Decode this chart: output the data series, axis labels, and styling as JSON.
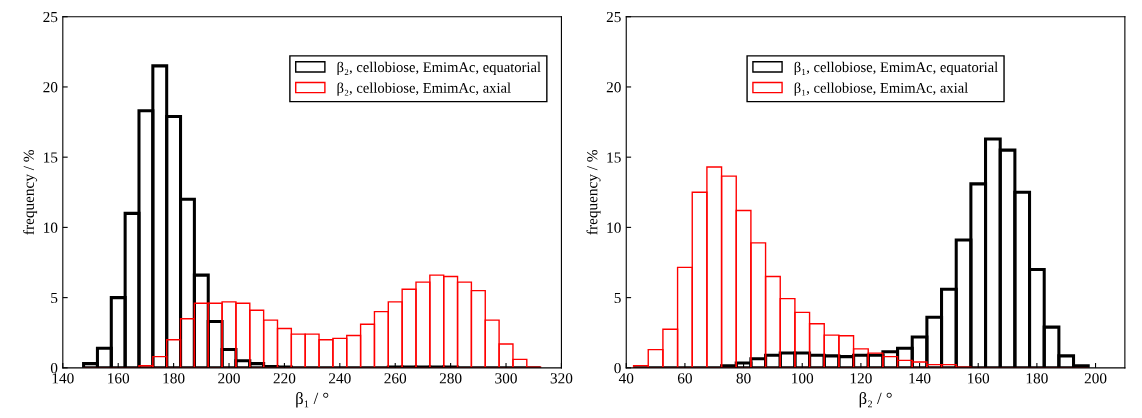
{
  "chart_data": [
    {
      "type": "histogram",
      "xlabel": "β₁ / °",
      "ylabel": "frequency / %",
      "legend": "top right",
      "bins": [
        147.5,
        152.5,
        157.5,
        162.5,
        167.5,
        172.5,
        177.5,
        182.5,
        187.5,
        192.5,
        197.5,
        202.5,
        207.5,
        212.5,
        217.5,
        222.5,
        227.5,
        232.5,
        237.5,
        242.5,
        247.5,
        252.5,
        257.5,
        262.5,
        267.5,
        272.5,
        277.5,
        282.5,
        287.5,
        292.5,
        297.5,
        302.5,
        307.5,
        312.5
      ],
      "series": [
        {
          "name": "β₂, cellobiose, EmimAc, equatorial",
          "color": "#000000",
          "values": [
            0.3,
            1.4,
            5.0,
            11.0,
            18.3,
            21.5,
            17.9,
            12.0,
            6.6,
            3.3,
            1.3,
            0.5,
            0.3,
            0.1,
            0.05,
            0,
            0,
            0,
            0,
            0,
            0,
            0,
            0.05,
            0.05,
            0.05,
            0.05,
            0.05,
            0,
            0,
            0,
            0,
            0,
            0
          ]
        },
        {
          "name": "β₂, cellobiose, EmimAc, axial",
          "color": "#ff0000",
          "values": [
            0,
            0,
            0,
            0,
            0.15,
            0.8,
            2.0,
            3.5,
            4.6,
            4.6,
            4.7,
            4.6,
            4.1,
            3.4,
            2.8,
            2.4,
            2.4,
            2.0,
            2.1,
            2.3,
            3.1,
            4.0,
            4.7,
            5.6,
            6.1,
            6.6,
            6.5,
            6.1,
            5.5,
            3.4,
            1.7,
            0.6,
            0.05
          ]
        }
      ],
      "xlim": [
        140,
        320
      ],
      "xticks": [
        140,
        160,
        180,
        200,
        220,
        240,
        260,
        280,
        300,
        320
      ],
      "ylim": [
        0,
        25
      ],
      "yticks": [
        0,
        5,
        10,
        15,
        20,
        25
      ],
      "grid": false
    },
    {
      "type": "histogram",
      "xlabel": "β₂ / °",
      "ylabel": "frequency / %",
      "legend": "top",
      "bins": [
        42.5,
        47.5,
        52.5,
        57.5,
        62.5,
        67.5,
        72.5,
        77.5,
        82.5,
        87.5,
        92.5,
        97.5,
        102.5,
        107.5,
        112.5,
        117.5,
        122.5,
        127.5,
        132.5,
        137.5,
        142.5,
        147.5,
        152.5,
        157.5,
        162.5,
        167.5,
        172.5,
        177.5,
        182.5,
        187.5,
        192.5,
        197.5
      ],
      "series": [
        {
          "name": "β₁, cellobiose, EmimAc, equatorial",
          "color": "#000000",
          "values": [
            0,
            0,
            0,
            0,
            0,
            0,
            0.15,
            0.35,
            0.65,
            0.9,
            1.05,
            1.05,
            0.9,
            0.85,
            0.8,
            0.9,
            0.9,
            1.15,
            1.4,
            2.2,
            3.6,
            5.6,
            9.1,
            13.1,
            16.3,
            15.5,
            12.5,
            7.0,
            2.9,
            0.85,
            0.15
          ]
        },
        {
          "name": "β₁, cellobiose, EmimAc, axial",
          "color": "#ff0000",
          "values": [
            0.16,
            1.3,
            2.75,
            7.15,
            12.5,
            14.3,
            13.65,
            11.2,
            8.9,
            6.5,
            4.93,
            3.95,
            3.14,
            2.33,
            2.28,
            1.35,
            1.05,
            0.8,
            0.53,
            0.42,
            0.23,
            0.23,
            0.05,
            0,
            0,
            0,
            0,
            0,
            0,
            0,
            0
          ]
        }
      ],
      "xlim": [
        40,
        210
      ],
      "xticks": [
        40,
        60,
        80,
        100,
        120,
        140,
        160,
        180,
        200
      ],
      "ylim": [
        0,
        25
      ],
      "yticks": [
        0,
        5,
        10,
        15,
        20,
        25
      ],
      "grid": false
    }
  ]
}
